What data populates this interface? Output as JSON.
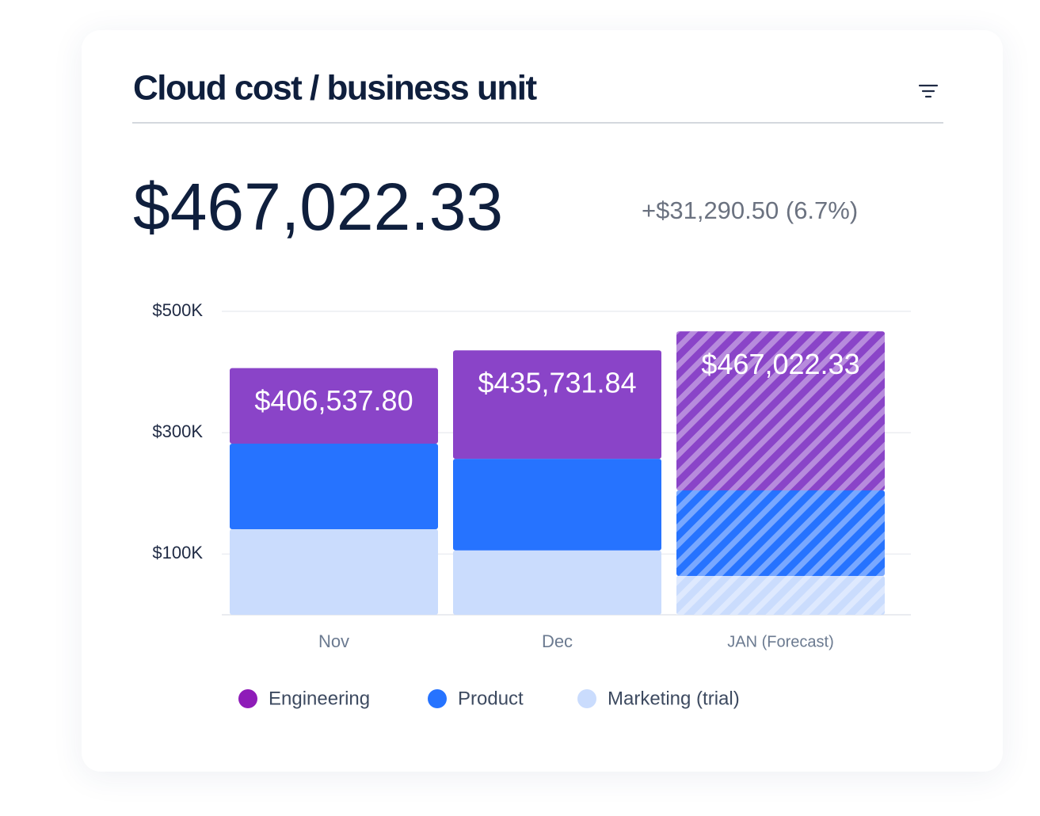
{
  "chart_data": {
    "type": "stacked-bar",
    "title": "Cloud cost / business unit",
    "headline": "$467,022.33",
    "change": "+$31,290.50 (6.7%)",
    "categories": [
      "Nov",
      "Dec",
      "JAN (Forecast)"
    ],
    "hatched": [
      false,
      false,
      true
    ],
    "series": [
      {
        "name": "Marketing (trial)",
        "color": "#cadcfd",
        "values": [
          141000,
          106000,
          64000
        ]
      },
      {
        "name": "Product",
        "color": "#2673ff",
        "values": [
          141000,
          151000,
          141000
        ]
      },
      {
        "name": "Engineering",
        "color": "#8a44c8",
        "values": [
          124537.8,
          178731.84,
          262022.33
        ]
      }
    ],
    "legend_order": [
      2,
      1,
      0
    ],
    "legend_dot_colors": [
      "#cadcfd",
      "#2673ff",
      "#8e1cb8"
    ],
    "totals": {
      "values": [
        406537.8,
        435731.84,
        467022.33
      ],
      "value_labels": [
        "$406,537.80",
        "$435,731.84",
        "$467,022.33"
      ]
    },
    "ylim": [
      0,
      500000
    ],
    "yticks": [
      {
        "value": 100000,
        "label": "$100K"
      },
      {
        "value": 300000,
        "label": "$300K"
      },
      {
        "value": 500000,
        "label": "$500K"
      }
    ],
    "grid": true
  }
}
